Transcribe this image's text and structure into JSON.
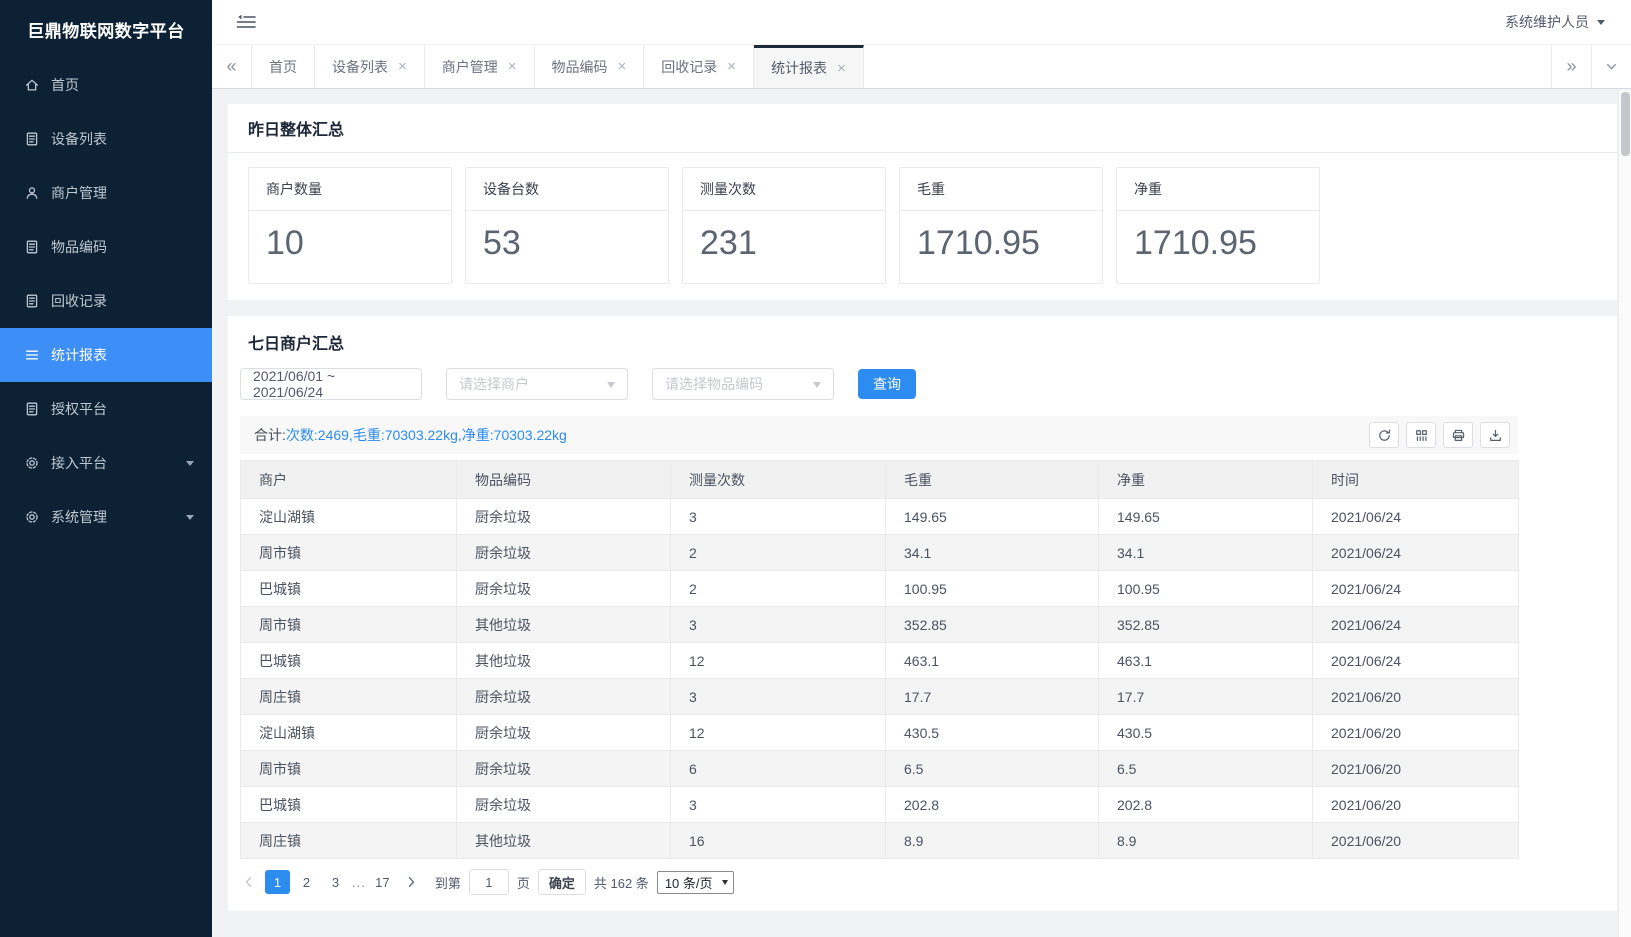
{
  "colors": {
    "accent": "#2d8cf0",
    "sidebar_bg": "#0c2134",
    "sidebar_active": "#3e8ef7"
  },
  "sidebar": {
    "title": "巨鼎物联网数字平台",
    "items": [
      {
        "key": "home",
        "label": "首页",
        "icon": "home-icon",
        "active": false,
        "submenu": false
      },
      {
        "key": "device-list",
        "label": "设备列表",
        "icon": "doc-icon",
        "active": false,
        "submenu": false
      },
      {
        "key": "merchant-management",
        "label": "商户管理",
        "icon": "user-icon",
        "active": false,
        "submenu": false
      },
      {
        "key": "item-code",
        "label": "物品编码",
        "icon": "doc-icon",
        "active": false,
        "submenu": false
      },
      {
        "key": "recycle-records",
        "label": "回收记录",
        "icon": "doc-icon",
        "active": false,
        "submenu": false
      },
      {
        "key": "statistics-report",
        "label": "统计报表",
        "icon": "menu-icon",
        "active": true,
        "submenu": false
      },
      {
        "key": "authorized-platform",
        "label": "授权平台",
        "icon": "doc-icon",
        "active": false,
        "submenu": false
      },
      {
        "key": "access-platform",
        "label": "接入平台",
        "icon": "gear-icon",
        "active": false,
        "submenu": true
      },
      {
        "key": "system-management",
        "label": "系统管理",
        "icon": "gear-icon",
        "active": false,
        "submenu": true
      }
    ]
  },
  "topbar": {
    "user": "系统维护人员"
  },
  "tabs": {
    "items": [
      {
        "label": "首页",
        "closable": false,
        "active": false
      },
      {
        "label": "设备列表",
        "closable": true,
        "active": false
      },
      {
        "label": "商户管理",
        "closable": true,
        "active": false
      },
      {
        "label": "物品编码",
        "closable": true,
        "active": false
      },
      {
        "label": "回收记录",
        "closable": true,
        "active": false
      },
      {
        "label": "统计报表",
        "closable": true,
        "active": true
      }
    ]
  },
  "daily_summary": {
    "title": "昨日整体汇总",
    "cards": [
      {
        "label": "商户数量",
        "value": "10"
      },
      {
        "label": "设备台数",
        "value": "53"
      },
      {
        "label": "测量次数",
        "value": "231"
      },
      {
        "label": "毛重",
        "value": "1710.95"
      },
      {
        "label": "净重",
        "value": "1710.95"
      }
    ]
  },
  "weekly_report": {
    "title": "七日商户汇总",
    "filters": {
      "date_range": "2021/06/01 ~ 2021/06/24",
      "merchant_placeholder": "请选择商户",
      "item_code_placeholder": "请选择物品编码",
      "search_button": "查询"
    },
    "totals": {
      "label": "合计:",
      "value": "次数:2469,毛重:70303.22kg,净重:70303.22kg"
    },
    "toolbar_icons": [
      "refresh-icon",
      "columns-icon",
      "printer-icon",
      "export-icon"
    ],
    "table": {
      "columns": [
        "商户",
        "物品编码",
        "测量次数",
        "毛重",
        "净重",
        "时间"
      ],
      "rows": [
        [
          "淀山湖镇",
          "厨余垃圾",
          "3",
          "149.65",
          "149.65",
          "2021/06/24"
        ],
        [
          "周市镇",
          "厨余垃圾",
          "2",
          "34.1",
          "34.1",
          "2021/06/24"
        ],
        [
          "巴城镇",
          "厨余垃圾",
          "2",
          "100.95",
          "100.95",
          "2021/06/24"
        ],
        [
          "周市镇",
          "其他垃圾",
          "3",
          "352.85",
          "352.85",
          "2021/06/24"
        ],
        [
          "巴城镇",
          "其他垃圾",
          "12",
          "463.1",
          "463.1",
          "2021/06/24"
        ],
        [
          "周庄镇",
          "厨余垃圾",
          "3",
          "17.7",
          "17.7",
          "2021/06/20"
        ],
        [
          "淀山湖镇",
          "厨余垃圾",
          "12",
          "430.5",
          "430.5",
          "2021/06/20"
        ],
        [
          "周市镇",
          "厨余垃圾",
          "6",
          "6.5",
          "6.5",
          "2021/06/20"
        ],
        [
          "巴城镇",
          "厨余垃圾",
          "3",
          "202.8",
          "202.8",
          "2021/06/20"
        ],
        [
          "周庄镇",
          "其他垃圾",
          "16",
          "8.9",
          "8.9",
          "2021/06/20"
        ]
      ]
    },
    "pagination": {
      "pages": [
        "1",
        "2",
        "3",
        "...",
        "17"
      ],
      "active_page": "1",
      "goto_prefix": "到第",
      "goto_value": "1",
      "goto_suffix": "页",
      "confirm_button": "确定",
      "total_text": "共 162 条",
      "page_size": "10 条/页"
    }
  }
}
